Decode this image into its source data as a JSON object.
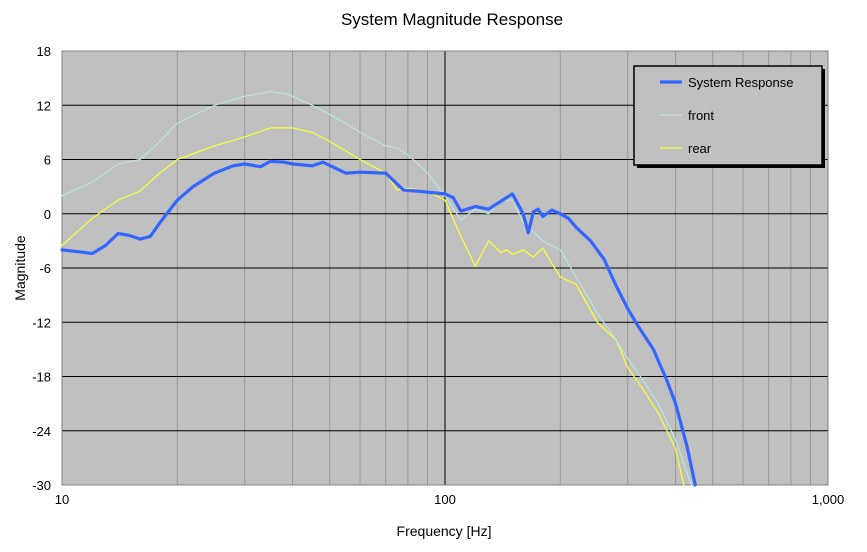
{
  "chart_data": {
    "type": "line",
    "title": "System Magnitude Response",
    "xlabel": "Frequency [Hz]",
    "ylabel": "Magnitude",
    "x_scale": "log",
    "xlim": [
      10,
      1000
    ],
    "ylim": [
      -30,
      18
    ],
    "x_ticks": [
      {
        "value": 10,
        "label": "10"
      },
      {
        "value": 100,
        "label": "100"
      },
      {
        "value": 1000,
        "label": "1,000"
      }
    ],
    "y_ticks": [
      -30,
      -24,
      -18,
      -12,
      -6,
      0,
      6,
      12,
      18
    ],
    "grid": true,
    "legend_position": "top-right",
    "colors": {
      "plot_background": "#c0c0c0",
      "grid_minor": "#999999",
      "grid_major": "#000000"
    },
    "series": [
      {
        "name": "System Response",
        "color": "#3366ff",
        "x": [
          10,
          11,
          12,
          13,
          14,
          15,
          16,
          17,
          18,
          20,
          22,
          25,
          28,
          30,
          33,
          35,
          38,
          40,
          45,
          48,
          55,
          60,
          70,
          78,
          85,
          90,
          100,
          105,
          110,
          120,
          130,
          140,
          150,
          160,
          165,
          170,
          175,
          180,
          190,
          200,
          210,
          220,
          240,
          260,
          280,
          300,
          320,
          350,
          380,
          400,
          430,
          450
        ],
        "values": [
          -4,
          -4.2,
          -4.4,
          -3.5,
          -2.2,
          -2.4,
          -2.8,
          -2.5,
          -1,
          1.5,
          3,
          4.5,
          5.3,
          5.5,
          5.2,
          5.8,
          5.7,
          5.5,
          5.3,
          5.7,
          4.5,
          4.6,
          4.5,
          2.6,
          2.5,
          2.4,
          2.2,
          1.8,
          0.3,
          0.8,
          0.5,
          1.4,
          2.2,
          0,
          -2.1,
          0.2,
          0.5,
          -0.3,
          0.4,
          0,
          -0.5,
          -1.5,
          -3,
          -5,
          -8,
          -10.5,
          -12.5,
          -15,
          -18.5,
          -21,
          -26,
          -30
        ]
      },
      {
        "name": "front",
        "color": "#b8e6e0",
        "x": [
          10,
          12,
          14,
          16,
          18,
          20,
          25,
          30,
          35,
          38,
          40,
          45,
          50,
          55,
          60,
          70,
          75,
          80,
          85,
          90,
          100,
          110,
          120,
          130,
          140,
          150,
          160,
          170,
          180,
          200,
          220,
          250,
          280,
          300,
          330,
          360,
          400,
          440
        ],
        "values": [
          2,
          3.5,
          5.5,
          6,
          8,
          10,
          12,
          13,
          13.5,
          13.3,
          13,
          12,
          11,
          10,
          9,
          7.5,
          7.3,
          6.5,
          5.5,
          4.5,
          2,
          -0.7,
          0.5,
          0,
          1.5,
          1.5,
          -1,
          -2,
          -3,
          -4,
          -7,
          -11,
          -14,
          -16,
          -18.5,
          -21,
          -25,
          -30
        ]
      },
      {
        "name": "rear",
        "color": "#ffff33",
        "x": [
          10,
          12,
          14,
          16,
          18,
          20,
          25,
          30,
          35,
          40,
          45,
          50,
          60,
          70,
          75,
          80,
          90,
          100,
          110,
          120,
          130,
          140,
          145,
          150,
          160,
          170,
          180,
          190,
          200,
          220,
          250,
          280,
          300,
          330,
          360,
          400,
          420
        ],
        "values": [
          -3.5,
          -0.5,
          1.5,
          2.5,
          4.5,
          6,
          7.5,
          8.5,
          9.5,
          9.5,
          9,
          8,
          6,
          4.5,
          2.6,
          2.8,
          2.5,
          1.5,
          -2.5,
          -5.8,
          -3,
          -4.3,
          -4,
          -4.5,
          -4,
          -4.8,
          -3.8,
          -5.5,
          -7,
          -7.8,
          -12,
          -14,
          -17,
          -19.5,
          -22,
          -26,
          -30
        ]
      }
    ]
  }
}
